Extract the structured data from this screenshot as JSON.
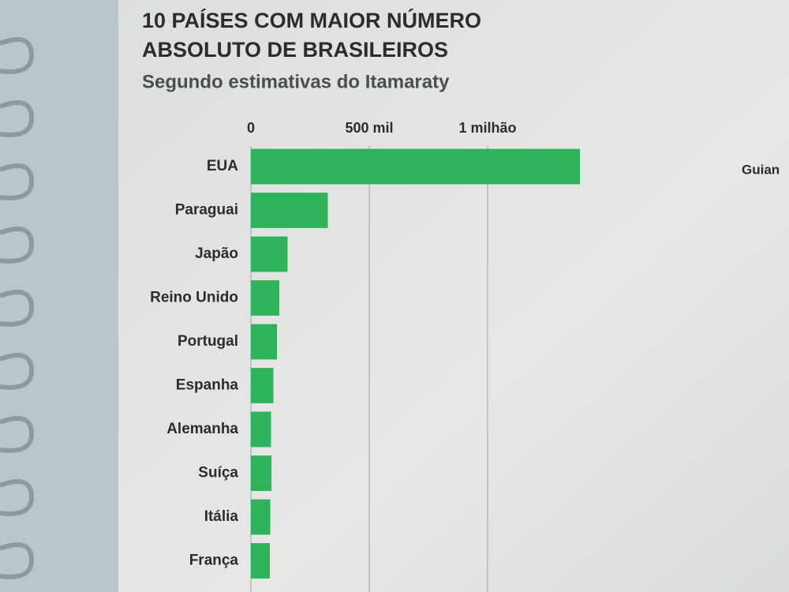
{
  "chart_data": {
    "type": "barh",
    "title": [
      "10 PAÍSES COM MAIOR NÚMERO",
      "ABSOLUTO DE BRASILEIROS"
    ],
    "subtitle": "Segundo estimativas do Itamaraty",
    "categories": [
      "EUA",
      "Paraguai",
      "Japão",
      "Reino Unido",
      "Portugal",
      "Espanha",
      "Alemanha",
      "Suíça",
      "Itália",
      "França"
    ],
    "values": [
      1390000,
      325000,
      155000,
      120000,
      110000,
      95000,
      85000,
      87000,
      82000,
      80000
    ],
    "color": "#2eb35a",
    "xlim": [
      0,
      2000000
    ],
    "xticks": [
      0,
      {
        "value": 500000,
        "label": "500 mil"
      },
      {
        "value": 1000000,
        "label": "1 milhão"
      }
    ],
    "grid": true,
    "annotations": [
      "Guian"
    ]
  }
}
